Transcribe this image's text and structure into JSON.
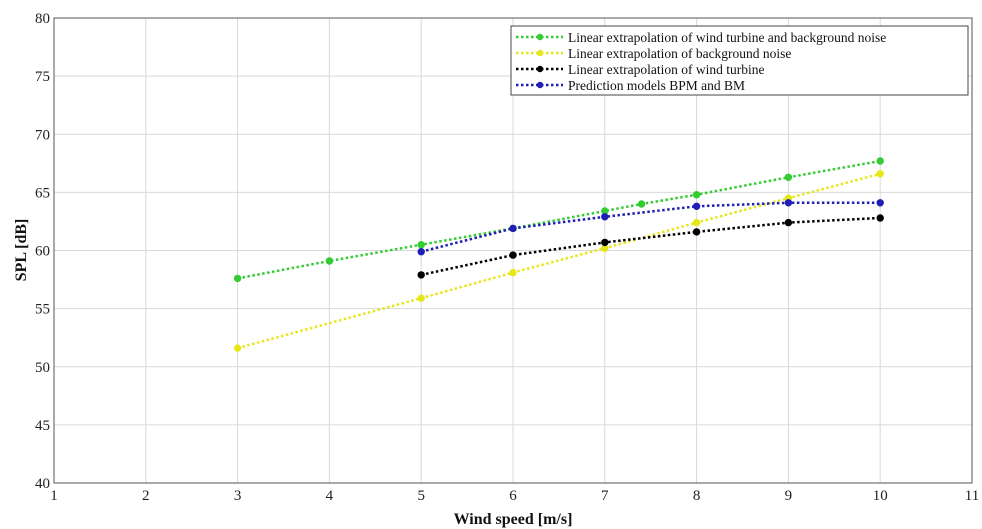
{
  "chart_data": {
    "type": "line",
    "title": "",
    "xlabel": "Wind speed [m/s]",
    "ylabel": "SPL [dB]",
    "xlim": [
      1,
      11
    ],
    "ylim": [
      40,
      80
    ],
    "x_ticks": [
      "1",
      "2",
      "3",
      "4",
      "5",
      "6",
      "7",
      "8",
      "9",
      "10",
      "11"
    ],
    "y_ticks": [
      "40",
      "45",
      "50",
      "55",
      "60",
      "65",
      "70",
      "75",
      "80"
    ],
    "grid": true,
    "legend_position": "top-right",
    "series": [
      {
        "name": "Linear extrapolation of wind turbine and background noise",
        "color": "#33cc33",
        "x": [
          3,
          4,
          5,
          6,
          7,
          7.4,
          8,
          9,
          10
        ],
        "y": [
          57.6,
          59.1,
          60.5,
          61.9,
          63.4,
          64.0,
          64.8,
          66.3,
          67.7
        ]
      },
      {
        "name": "Linear extrapolation of  background noise",
        "color": "#e6e619",
        "x": [
          3,
          5,
          6,
          7,
          8,
          9,
          10
        ],
        "y": [
          51.6,
          55.9,
          58.1,
          60.2,
          62.4,
          64.5,
          66.6
        ]
      },
      {
        "name": "Linear extrapolation of wind turbine",
        "color": "#000000",
        "x": [
          5,
          6,
          7,
          8,
          9,
          10
        ],
        "y": [
          57.9,
          59.6,
          60.7,
          61.6,
          62.4,
          62.8
        ]
      },
      {
        "name": "Prediction  models BPM and BM",
        "color": "#1f1fb4",
        "x": [
          5,
          6,
          7,
          8,
          9,
          10
        ],
        "y": [
          59.9,
          61.9,
          62.9,
          63.8,
          64.1,
          64.1
        ]
      }
    ]
  }
}
